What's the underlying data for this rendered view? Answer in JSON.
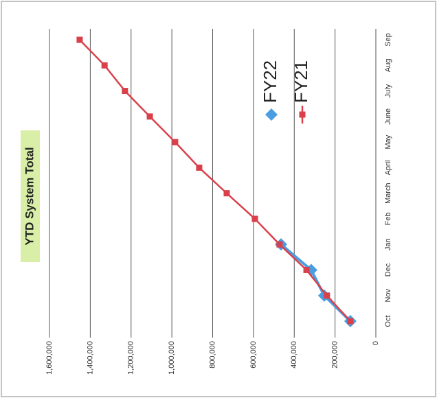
{
  "chart_data": {
    "type": "line",
    "title": "YTD System Total",
    "categories": [
      "Oct",
      "Nov",
      "Dec",
      "Jan",
      "Feb",
      "March",
      "April",
      "May",
      "June",
      "July",
      "Aug",
      "Sep"
    ],
    "series": [
      {
        "name": "FY22",
        "color": "#4a9de0",
        "values": [
          125000,
          253000,
          317000,
          465000,
          null,
          null,
          null,
          null,
          null,
          null,
          null,
          null
        ]
      },
      {
        "name": "FY21",
        "color": "#d9404a",
        "values": [
          125000,
          240000,
          340000,
          472000,
          593000,
          731000,
          866000,
          984000,
          1108000,
          1230000,
          1330000,
          1452000
        ]
      }
    ],
    "ylim": [
      0,
      1600000
    ],
    "yticks": [
      0,
      {
        "value": 200000,
        "label": "200,000"
      },
      {
        "value": 400000,
        "label": "400,000"
      },
      {
        "value": 600000,
        "label": "600,000"
      },
      {
        "value": 800000,
        "label": "800,000"
      },
      {
        "value": 1000000,
        "label": "1,000,000"
      },
      {
        "value": 1200000,
        "label": "1,200,000"
      },
      {
        "value": 1400000,
        "label": "1,400,000"
      },
      {
        "value": 1600000,
        "label": "1,600,000"
      }
    ],
    "grid": true
  }
}
